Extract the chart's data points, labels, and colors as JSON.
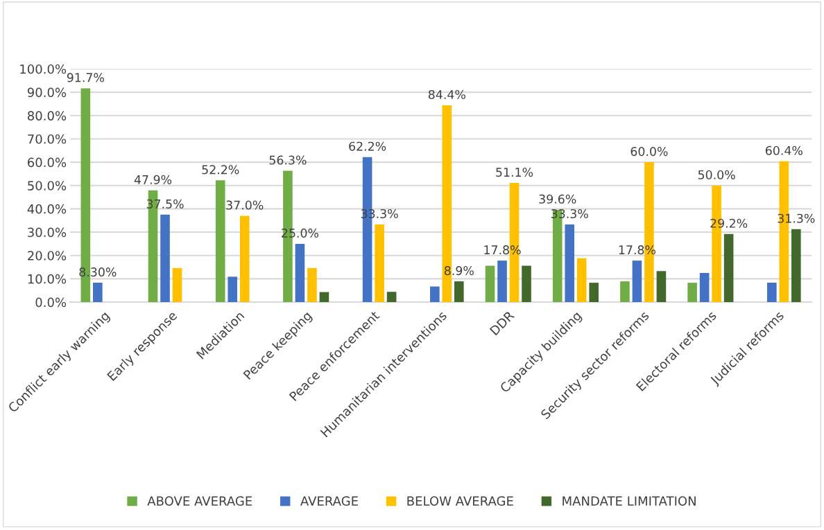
{
  "chart_data": {
    "type": "bar",
    "categories": [
      "Conflict early warning",
      "Early response",
      "Mediation",
      "Peace keeping",
      "Peace enforcement",
      "Humanitarian interventions",
      "DDR",
      "Capacity building",
      "Security sector reforms",
      "Electoral reforms",
      "Judicial reforms"
    ],
    "series": [
      {
        "name": "ABOVE AVERAGE",
        "color": "#70ad47",
        "values": [
          91.7,
          47.9,
          52.2,
          56.3,
          null,
          null,
          15.6,
          39.6,
          8.9,
          8.3,
          null
        ],
        "value_labels": [
          "91.7%",
          "47.9%",
          "52.2%",
          "56.3%",
          null,
          null,
          null,
          "39.6%",
          null,
          null,
          null
        ]
      },
      {
        "name": "AVERAGE",
        "color": "#4472c4",
        "values": [
          8.3,
          37.5,
          10.9,
          25.0,
          62.2,
          6.7,
          17.8,
          33.3,
          17.8,
          12.5,
          8.3
        ],
        "value_labels": [
          "8.30%",
          "37.5%",
          null,
          "25.0%",
          "62.2%",
          null,
          "17.8%",
          "33.3%",
          "17.8%",
          null,
          null
        ]
      },
      {
        "name": "BELOW AVERAGE",
        "color": "#ffc000",
        "values": [
          null,
          14.6,
          37.0,
          14.6,
          33.3,
          84.4,
          51.1,
          18.8,
          60.0,
          50.0,
          60.4
        ],
        "value_labels": [
          null,
          null,
          "37.0%",
          null,
          "33.3%",
          "84.4%",
          "51.1%",
          null,
          "60.0%",
          "50.0%",
          "60.4%"
        ]
      },
      {
        "name": "MANDATE LIMITATION",
        "color": "#43682b",
        "values": [
          null,
          null,
          null,
          4.3,
          4.4,
          8.9,
          15.6,
          8.3,
          13.3,
          29.2,
          31.3
        ],
        "value_labels": [
          null,
          null,
          null,
          null,
          null,
          "8.9%",
          null,
          null,
          null,
          "29.2%",
          "31.3%"
        ]
      }
    ],
    "ylim": [
      0,
      100
    ],
    "yticks": [
      {
        "value": 0,
        "label": "0.0%"
      },
      {
        "value": 10,
        "label": "10.0%"
      },
      {
        "value": 20,
        "label": "20.0%"
      },
      {
        "value": 30,
        "label": "30.0%"
      },
      {
        "value": 40,
        "label": "40.0%"
      },
      {
        "value": 50,
        "label": "50.0%"
      },
      {
        "value": 60,
        "label": "60.0%"
      },
      {
        "value": 70,
        "label": "70.0%"
      },
      {
        "value": 80,
        "label": "80.0%"
      },
      {
        "value": 90,
        "label": "90.0%"
      },
      {
        "value": 100,
        "label": "100.0%"
      }
    ],
    "grid": "y",
    "legend": "bottom"
  }
}
